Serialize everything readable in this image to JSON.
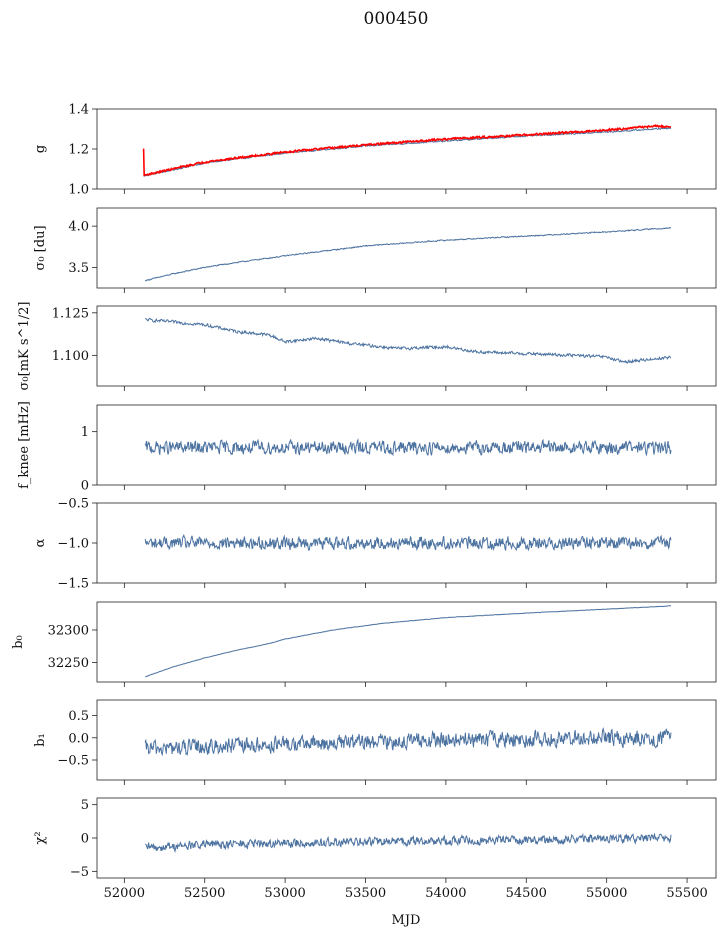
{
  "figure": {
    "title": "000450",
    "xlabel": "MJD"
  },
  "chart_data": [
    {
      "type": "line",
      "ylabel": "g",
      "ylim": [
        1.0,
        1.4
      ],
      "yticks": [
        1.0,
        1.2,
        1.4
      ],
      "xlim": [
        51830,
        55680
      ],
      "xticks": [
        52000,
        52500,
        53000,
        53500,
        54000,
        54500,
        55000,
        55500
      ],
      "series": [
        {
          "color": "#4c72a0",
          "noise": 0.003,
          "x": [
            52120,
            52300,
            52500,
            52700,
            53000,
            53500,
            54000,
            54500,
            55000,
            55400
          ],
          "values": [
            1.065,
            1.095,
            1.13,
            1.15,
            1.18,
            1.215,
            1.24,
            1.265,
            1.285,
            1.305
          ]
        },
        {
          "color": "#ff0000",
          "noise": 0.004,
          "x": [
            52120,
            52122,
            52125,
            52130,
            52300,
            52500,
            52700,
            53000,
            53500,
            54000,
            54500,
            55000,
            55300,
            55400
          ],
          "values": [
            1.2,
            1.065,
            1.07,
            1.07,
            1.1,
            1.135,
            1.155,
            1.185,
            1.22,
            1.25,
            1.27,
            1.295,
            1.315,
            1.31
          ]
        }
      ]
    },
    {
      "type": "line",
      "ylabel": "σ₀ [du]",
      "ylim": [
        3.25,
        4.22
      ],
      "yticks": [
        3.5,
        4.0
      ],
      "xlim": [
        51830,
        55680
      ],
      "xticks": [
        52000,
        52500,
        53000,
        53500,
        54000,
        54500,
        55000,
        55500
      ],
      "series": [
        {
          "color": "#4c72a0",
          "noise": 0.006,
          "x": [
            52130,
            52300,
            52500,
            52700,
            53000,
            53500,
            54000,
            54500,
            55000,
            55400
          ],
          "values": [
            3.34,
            3.42,
            3.5,
            3.56,
            3.64,
            3.76,
            3.83,
            3.88,
            3.93,
            3.98
          ]
        }
      ]
    },
    {
      "type": "line",
      "ylabel": "σ₀[mK s^1/2]",
      "ylim": [
        1.082,
        1.129
      ],
      "yticks": [
        1.1,
        1.125
      ],
      "xlim": [
        51830,
        55680
      ],
      "xticks": [
        52000,
        52500,
        53000,
        53500,
        54000,
        54500,
        55000,
        55500
      ],
      "series": [
        {
          "color": "#4c72a0",
          "noise": 0.0008,
          "x": [
            52130,
            52500,
            52700,
            52900,
            53000,
            53200,
            53400,
            53700,
            54000,
            54200,
            54500,
            54800,
            55000,
            55100,
            55400
          ],
          "values": [
            1.121,
            1.118,
            1.114,
            1.112,
            1.108,
            1.11,
            1.107,
            1.104,
            1.105,
            1.102,
            1.101,
            1.1,
            1.099,
            1.096,
            1.099
          ]
        }
      ]
    },
    {
      "type": "line",
      "ylabel": "f_knee [mHz]",
      "ylim": [
        0,
        1.5
      ],
      "yticks": [
        0,
        1
      ],
      "xlim": [
        51830,
        55680
      ],
      "xticks": [
        52000,
        52500,
        53000,
        53500,
        54000,
        54500,
        55000,
        55500
      ],
      "series": [
        {
          "color": "#4c72a0",
          "noise": 0.11,
          "x": [
            52130,
            53000,
            54000,
            55400
          ],
          "values": [
            0.7,
            0.7,
            0.7,
            0.7
          ]
        }
      ]
    },
    {
      "type": "line",
      "ylabel": "α",
      "ylim": [
        -1.5,
        -0.5
      ],
      "yticks": [
        -1.5,
        -1.0,
        -0.5
      ],
      "xlim": [
        51830,
        55680
      ],
      "xticks": [
        52000,
        52500,
        53000,
        53500,
        54000,
        54500,
        55000,
        55500
      ],
      "series": [
        {
          "color": "#4c72a0",
          "noise": 0.07,
          "x": [
            52130,
            53000,
            54000,
            55400
          ],
          "values": [
            -1.0,
            -1.0,
            -1.0,
            -1.0
          ]
        }
      ]
    },
    {
      "type": "line",
      "ylabel": "b₀",
      "ylim": [
        32220,
        32343
      ],
      "yticks": [
        32250,
        32300
      ],
      "xlim": [
        51830,
        55680
      ],
      "xticks": [
        52000,
        52500,
        53000,
        53500,
        54000,
        54500,
        55000,
        55500
      ],
      "series": [
        {
          "color": "#4c72a0",
          "noise": 0.3,
          "x": [
            52130,
            52300,
            52500,
            52700,
            52900,
            53000,
            53300,
            53600,
            54000,
            54500,
            55000,
            55400
          ],
          "values": [
            32228,
            32243,
            32257,
            32269,
            32279,
            32286,
            32300,
            32310,
            32319,
            32326,
            32332,
            32337
          ]
        }
      ]
    },
    {
      "type": "line",
      "ylabel": "b₁",
      "ylim": [
        -0.95,
        0.85
      ],
      "yticks": [
        -0.5,
        0.0,
        0.5
      ],
      "xlim": [
        51830,
        55680
      ],
      "xticks": [
        52000,
        52500,
        53000,
        53500,
        54000,
        54500,
        55000,
        55500
      ],
      "series": [
        {
          "color": "#4c72a0",
          "noise": 0.16,
          "x": [
            52130,
            53000,
            54000,
            55400
          ],
          "values": [
            -0.25,
            -0.15,
            -0.05,
            0.0
          ]
        }
      ]
    },
    {
      "type": "line",
      "ylabel": "χ²",
      "ylim": [
        -6,
        6
      ],
      "yticks": [
        -5,
        0,
        5
      ],
      "xlim": [
        51830,
        55680
      ],
      "xticks": [
        52000,
        52500,
        53000,
        53500,
        54000,
        54500,
        55000,
        55500
      ],
      "series": [
        {
          "color": "#4c72a0",
          "noise": 0.6,
          "x": [
            52130,
            52500,
            53000,
            54000,
            55400
          ],
          "values": [
            -1.5,
            -1.0,
            -0.8,
            -0.4,
            0.0
          ]
        }
      ]
    }
  ]
}
